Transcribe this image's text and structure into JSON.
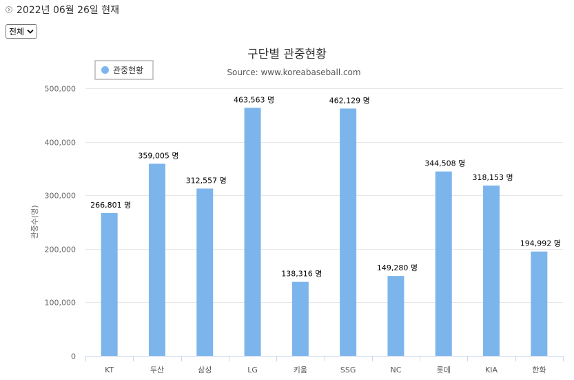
{
  "header": {
    "date_text": "2022년 06월 26일 현재"
  },
  "filter": {
    "selected": "전체"
  },
  "icons": {
    "date_icon": "chevron-right-circle-icon",
    "dropdown_icon": "chevron-down-icon"
  },
  "chart_data": {
    "type": "bar",
    "title": "구단별 관중현황",
    "subtitle": "Source: www.koreabaseball.com",
    "xlabel": "",
    "ylabel": "관중수(명)",
    "ylim": [
      0,
      500000
    ],
    "yticks": [
      0,
      100000,
      200000,
      300000,
      400000,
      500000
    ],
    "ytick_labels": [
      "0",
      "100,000",
      "200,000",
      "300,000",
      "400,000",
      "500,000"
    ],
    "grid": true,
    "legend_position": "top-left",
    "bar_color": "#7cb5ec",
    "categories": [
      "KT",
      "두산",
      "삼성",
      "LG",
      "키움",
      "SSG",
      "NC",
      "롯데",
      "KIA",
      "한화"
    ],
    "series": [
      {
        "name": "관중현황",
        "values": [
          266801,
          359005,
          312557,
          463563,
          138316,
          462129,
          149280,
          344508,
          318153,
          194992
        ]
      }
    ],
    "data_labels": [
      "266,801 명",
      "359,005 명",
      "312,557 명",
      "463,563 명",
      "138,316 명",
      "462,129 명",
      "149,280 명",
      "344,508 명",
      "318,153 명",
      "194,992 명"
    ]
  }
}
